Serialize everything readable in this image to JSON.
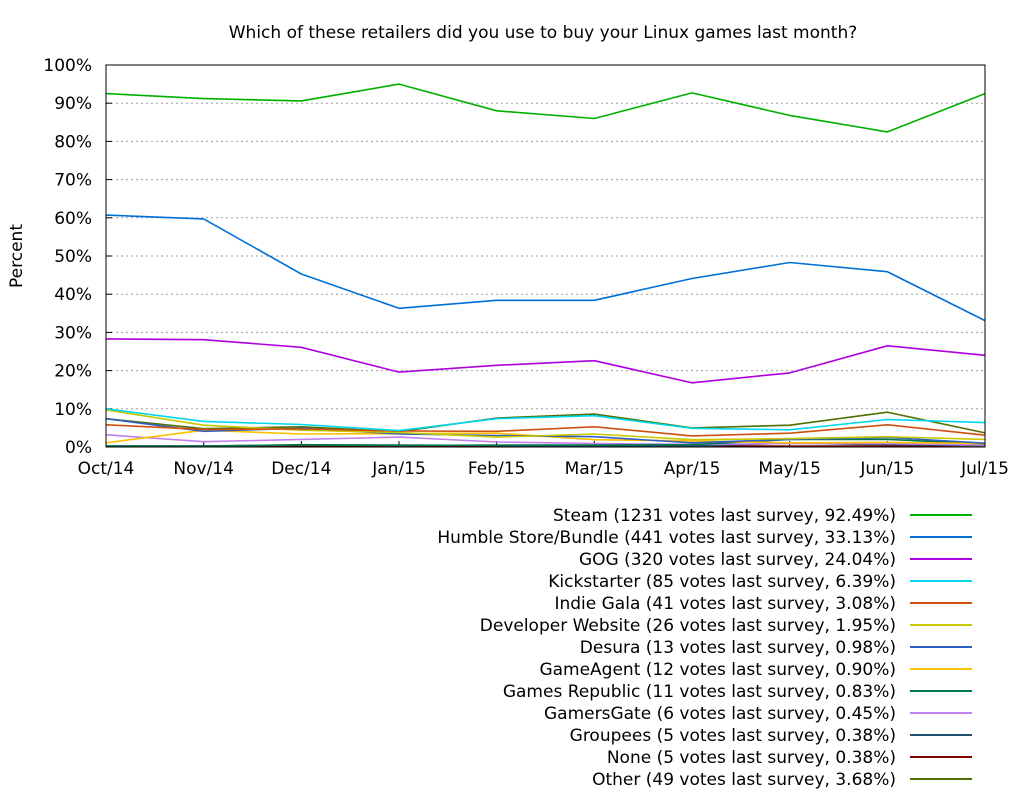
{
  "chart_data": {
    "type": "line",
    "title": "Which of these retailers did you use to buy your Linux games last month?",
    "xlabel": "",
    "ylabel": "Percent",
    "ylim": [
      0,
      100
    ],
    "yticks": [
      "0%",
      "10%",
      "20%",
      "30%",
      "40%",
      "50%",
      "60%",
      "70%",
      "80%",
      "90%",
      "100%"
    ],
    "categories": [
      "Oct/14",
      "Nov/14",
      "Dec/14",
      "Jan/15",
      "Feb/15",
      "Mar/15",
      "Apr/15",
      "May/15",
      "Jun/15",
      "Jul/15"
    ],
    "grid": "horizontal dotted",
    "legend_position": "bottom-right, below plot",
    "series": [
      {
        "name": "Steam (1231 votes last survey, 92.49%)",
        "color": "#00b000",
        "values": [
          92.5,
          91.2,
          90.6,
          95.0,
          88.0,
          86.0,
          92.7,
          86.8,
          82.5,
          92.5
        ]
      },
      {
        "name": "Humble Store/Bundle (441 votes last survey, 33.13%)",
        "color": "#0070d8",
        "values": [
          60.7,
          59.7,
          45.3,
          36.3,
          38.4,
          38.4,
          44.1,
          48.3,
          45.9,
          33.1
        ]
      },
      {
        "name": "GOG (320 votes last survey, 24.04%)",
        "color": "#b000e0",
        "values": [
          28.3,
          28.1,
          26.1,
          19.6,
          21.4,
          22.6,
          16.8,
          19.4,
          26.5,
          24.0
        ]
      },
      {
        "name": "Kickstarter (85 votes last survey, 6.39%)",
        "color": "#00d8f0",
        "values": [
          10.0,
          6.7,
          5.9,
          4.3,
          7.4,
          8.2,
          4.9,
          4.5,
          7.2,
          6.4
        ]
      },
      {
        "name": "Indie Gala (41 votes last survey, 3.08%)",
        "color": "#d05010",
        "values": [
          5.8,
          4.6,
          4.7,
          4.2,
          4.1,
          5.3,
          2.9,
          3.6,
          5.8,
          3.1
        ]
      },
      {
        "name": "Developer Website (26 votes last survey, 1.95%)",
        "color": "#c8c800",
        "values": [
          9.7,
          5.7,
          4.4,
          3.8,
          2.6,
          3.4,
          1.9,
          2.2,
          2.7,
          2.0
        ]
      },
      {
        "name": "Desura (13 votes last survey, 0.98%)",
        "color": "#3060c0",
        "values": [
          7.4,
          4.1,
          4.9,
          3.4,
          3.0,
          2.7,
          1.1,
          2.0,
          2.5,
          1.0
        ]
      },
      {
        "name": "GameAgent (12 votes last survey, 0.90%)",
        "color": "#ffc000",
        "values": [
          1.1,
          4.4,
          3.4,
          3.5,
          3.6,
          1.9,
          1.6,
          1.1,
          1.2,
          0.9
        ]
      },
      {
        "name": "Games Republic (11 votes last survey, 0.83%)",
        "color": "#007848",
        "values": [
          0.2,
          0.2,
          0.6,
          0.4,
          0.5,
          0.5,
          0.6,
          2.0,
          2.0,
          0.8
        ]
      },
      {
        "name": "GamersGate (6 votes last survey, 0.45%)",
        "color": "#c080f0",
        "values": [
          3.2,
          1.4,
          2.0,
          2.6,
          1.3,
          0.9,
          0.7,
          0.9,
          0.9,
          0.5
        ]
      },
      {
        "name": "Groupees (5 votes last survey, 0.38%)",
        "color": "#205070",
        "values": [
          0.3,
          0.3,
          0.5,
          0.5,
          0.4,
          0.3,
          0.3,
          1.0,
          0.6,
          0.4
        ]
      },
      {
        "name": "None (5 votes last survey, 0.38%)",
        "color": "#800000",
        "values": [
          0.1,
          0.1,
          0.2,
          0.2,
          0.1,
          0.1,
          0.4,
          0.2,
          0.3,
          0.4
        ]
      },
      {
        "name": "Other (49 votes last survey, 3.68%)",
        "color": "#507000",
        "values": [
          7.4,
          4.8,
          5.3,
          4.0,
          7.6,
          8.6,
          5.0,
          5.7,
          9.1,
          3.7
        ]
      }
    ]
  }
}
